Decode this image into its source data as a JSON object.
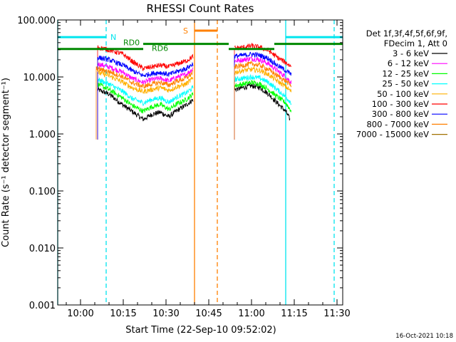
{
  "chart_data": {
    "type": "line",
    "title": "RHESSI Count Rates",
    "xlabel": "Start Time (22-Sep-10 09:52:02)",
    "ylabel": "Count Rate (s⁻¹ detector segment⁻¹)",
    "y_scale": "log",
    "ylim": [
      0.001,
      100
    ],
    "xlim": [
      "09:52",
      "11:32"
    ],
    "x_ticks": [
      "10:00",
      "10:15",
      "10:30",
      "10:45",
      "11:00",
      "11:15",
      "11:30"
    ],
    "y_ticks": [
      "0.001",
      "0.010",
      "0.100",
      "1.000",
      "10.000",
      "100.000"
    ],
    "legend_header": [
      "Det 1f,3f,4f,5f,6f,9f,",
      "FDecim 1, Att 0"
    ],
    "legend_position": "right",
    "timestamp": "16-Oct-2021 10:18",
    "series": [
      {
        "name": "3 - 6 keV",
        "color": "#000000",
        "segments": [
          {
            "x": [
              "10:06",
              "10:10",
              "10:15",
              "10:18",
              "10:22",
              "10:25",
              "10:28",
              "10:31",
              "10:34",
              "10:37",
              "10:39.5"
            ],
            "y": [
              6.0,
              5.0,
              3.2,
              2.5,
              1.8,
              2.2,
              2.4,
              2.0,
              2.6,
              3.2,
              4.0
            ]
          },
          {
            "x": [
              "10:54",
              "10:57",
              "11:00",
              "11:03",
              "11:06",
              "11:09",
              "11:12",
              "11:13.5"
            ],
            "y": [
              6.0,
              6.5,
              7.0,
              6.5,
              5.0,
              3.5,
              2.5,
              1.8
            ]
          }
        ]
      },
      {
        "name": "6 - 12 keV",
        "color": "#ff00ff",
        "segments": [
          {
            "x": [
              "10:06",
              "10:10",
              "10:15",
              "10:18",
              "10:22",
              "10:25",
              "10:28",
              "10:31",
              "10:34",
              "10:37",
              "10:39.5"
            ],
            "y": [
              17,
              15,
              12,
              9.5,
              8.0,
              9.0,
              9.5,
              8.5,
              10,
              11,
              14
            ]
          },
          {
            "x": [
              "10:54",
              "10:57",
              "11:00",
              "11:03",
              "11:06",
              "11:09",
              "11:12",
              "11:14"
            ],
            "y": [
              19,
              20,
              21,
              20,
              17,
              13,
              10,
              8.0
            ]
          }
        ]
      },
      {
        "name": "12 - 25 keV",
        "color": "#00ff00",
        "segments": [
          {
            "x": [
              "10:06",
              "10:10",
              "10:15",
              "10:18",
              "10:22",
              "10:25",
              "10:28",
              "10:31",
              "10:34",
              "10:37",
              "10:39.5"
            ],
            "y": [
              7.5,
              6.0,
              4.2,
              3.2,
              2.5,
              3.0,
              3.3,
              2.7,
              3.4,
              4.0,
              5.0
            ]
          },
          {
            "x": [
              "10:54",
              "10:57",
              "11:00",
              "11:03",
              "11:06",
              "11:09",
              "11:12",
              "11:14"
            ],
            "y": [
              7.0,
              7.5,
              8.0,
              7.5,
              6.0,
              4.5,
              3.5,
              2.5
            ]
          }
        ]
      },
      {
        "name": "25 - 50 keV",
        "color": "#00ffff",
        "segments": [
          {
            "x": [
              "10:06",
              "10:10",
              "10:15",
              "10:18",
              "10:22",
              "10:25",
              "10:28",
              "10:31",
              "10:34",
              "10:37",
              "10:39.5"
            ],
            "y": [
              9.0,
              7.5,
              5.5,
              4.2,
              3.5,
              4.0,
              4.3,
              3.6,
              4.5,
              5.2,
              6.5
            ]
          },
          {
            "x": [
              "10:54",
              "10:57",
              "11:00",
              "11:03",
              "11:06",
              "11:09",
              "11:12",
              "11:14"
            ],
            "y": [
              9.0,
              9.5,
              10,
              9.5,
              8.0,
              6.0,
              4.5,
              3.5
            ]
          }
        ]
      },
      {
        "name": "50 - 100 keV",
        "color": "#ffb000",
        "segments": [
          {
            "x": [
              "10:06",
              "10:10",
              "10:15",
              "10:18",
              "10:22",
              "10:25",
              "10:28",
              "10:31",
              "10:34",
              "10:37",
              "10:39.5"
            ],
            "y": [
              12,
              10.5,
              8.0,
              6.5,
              5.5,
              6.0,
              6.5,
              5.8,
              6.8,
              7.5,
              9.5
            ]
          },
          {
            "x": [
              "10:54",
              "10:57",
              "11:00",
              "11:03",
              "11:06",
              "11:09",
              "11:12",
              "11:14"
            ],
            "y": [
              12,
              13,
              13.5,
              13,
              11,
              8.5,
              6.8,
              5.5
            ]
          }
        ]
      },
      {
        "name": "100 - 300 keV",
        "color": "#ff0000",
        "segments": [
          {
            "x": [
              "10:06",
              "10:10",
              "10:15",
              "10:18",
              "10:22",
              "10:25",
              "10:28",
              "10:31",
              "10:34",
              "10:37",
              "10:39.5"
            ],
            "y": [
              33,
              30,
              25,
              19,
              14,
              15,
              16,
              15,
              17,
              19,
              23
            ]
          },
          {
            "x": [
              "10:54",
              "10:57",
              "11:00",
              "11:03",
              "11:06",
              "11:09",
              "11:12",
              "11:14"
            ],
            "y": [
              32,
              33,
              35,
              33,
              29,
              22,
              18,
              15
            ]
          }
        ]
      },
      {
        "name": "300 - 800 keV",
        "color": "#0000ff",
        "segments": [
          {
            "x": [
              "10:06",
              "10:10",
              "10:15",
              "10:18",
              "10:22",
              "10:25",
              "10:28",
              "10:31",
              "10:34",
              "10:37",
              "10:39.5"
            ],
            "y": [
              22,
              20,
              16,
              13,
              10.5,
              11.5,
              12,
              11,
              12.5,
              14,
              17
            ]
          },
          {
            "x": [
              "10:54",
              "10:57",
              "11:00",
              "11:03",
              "11:06",
              "11:09",
              "11:12",
              "11:14"
            ],
            "y": [
              23,
              24,
              25,
              24,
              21,
              16,
              13,
              11
            ]
          }
        ]
      },
      {
        "name": "800 - 7000 keV",
        "color": "#ff8000",
        "segments": [
          {
            "x": [
              "10:05.5",
              "10:10",
              "10:15",
              "10:18",
              "10:22",
              "10:25",
              "10:28",
              "10:31",
              "10:34",
              "10:37",
              "10:39.5"
            ],
            "y": [
              14,
              12.5,
              10,
              8.0,
              6.8,
              7.5,
              8.0,
              7.2,
              8.5,
              9.5,
              12
            ]
          },
          {
            "x": [
              "10:54",
              "10:57",
              "11:00",
              "11:03",
              "11:06",
              "11:09",
              "11:12",
              "11:14"
            ],
            "y": [
              15,
              16,
              17,
              16,
              13.5,
              10.5,
              8.5,
              7.0
            ]
          }
        ]
      },
      {
        "name": "7000 - 15000 keV",
        "color": "#a07000",
        "segments": []
      }
    ],
    "annotations": {
      "N": "N",
      "S": "S",
      "RD0": "RD0",
      "RD6": "RD6"
    },
    "flag_bars": [
      {
        "label_key": "N",
        "color": "#00e5ee",
        "level": 50,
        "segments": [
          [
            "09:52",
            "10:09"
          ],
          [
            "11:12",
            "11:32"
          ]
        ]
      },
      {
        "label_key": "S",
        "color": "#ff8000",
        "level": 65,
        "segments": [
          [
            "10:40",
            "10:48"
          ]
        ]
      },
      {
        "label_key": "RD0",
        "color": "#008800",
        "level": 38,
        "segments": [
          [
            "10:22",
            "10:52"
          ],
          [
            "11:08",
            "11:32"
          ]
        ]
      },
      {
        "label_key": "RD6",
        "color": "#008800",
        "level": 31,
        "segments": [
          [
            "09:52",
            "10:22"
          ],
          [
            "10:52",
            "11:08"
          ]
        ]
      }
    ],
    "vlines": [
      {
        "x": "09:52",
        "color": "#00e5ee",
        "style": "solid"
      },
      {
        "x": "10:09",
        "color": "#00e5ee",
        "style": "dashed"
      },
      {
        "x": "10:40",
        "color": "#ff8000",
        "style": "solid"
      },
      {
        "x": "10:48",
        "color": "#ff8000",
        "style": "dashed"
      },
      {
        "x": "11:12",
        "color": "#00e5ee",
        "style": "solid"
      },
      {
        "x": "11:29",
        "color": "#00e5ee",
        "style": "dashed"
      }
    ],
    "grid": false
  }
}
